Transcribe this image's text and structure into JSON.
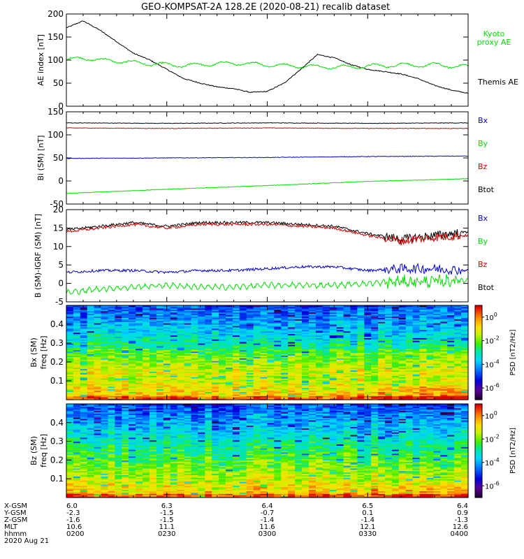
{
  "title": "GEO-KOMPSAT-2A 128.2E (2020-08-21) recalib dataset",
  "colors": {
    "black": "#000000",
    "green": "#00dd00",
    "blue": "#0000cc",
    "red": "#cc0000"
  },
  "chart_data": [
    {
      "type": "line",
      "ylabel": "AE index [nT]",
      "ylim": [
        0,
        200
      ],
      "yticks": [
        0,
        50,
        100,
        150,
        200
      ],
      "legend": [
        {
          "label": "Kyoto proxy AE",
          "color": "#00dd00"
        },
        {
          "label": "Themis AE",
          "color": "#000000"
        }
      ],
      "x_time_min": [
        0,
        5,
        10,
        15,
        20,
        25,
        30,
        35,
        40,
        45,
        50,
        55,
        60,
        65,
        70,
        75,
        80,
        85,
        90,
        95,
        100,
        105,
        110,
        115,
        120
      ],
      "series": [
        {
          "name": "Themis AE",
          "color": "#000000",
          "values": [
            170,
            185,
            165,
            140,
            115,
            100,
            80,
            60,
            50,
            42,
            38,
            30,
            32,
            50,
            80,
            112,
            105,
            90,
            80,
            75,
            70,
            60,
            45,
            35,
            28
          ]
        },
        {
          "name": "Kyoto proxy AE",
          "color": "#00dd00",
          "values": [
            100,
            105,
            100,
            98,
            95,
            92,
            90,
            88,
            90,
            92,
            93,
            92,
            90,
            88,
            87,
            86,
            85,
            85,
            87,
            88,
            90,
            88,
            90,
            87,
            86
          ]
        }
      ]
    },
    {
      "type": "line",
      "ylabel": "Bi (SM) [nT]",
      "ylim": [
        -50,
        150
      ],
      "yticks": [
        -50,
        0,
        50,
        100,
        150
      ],
      "legend": [
        {
          "label": "Bx",
          "color": "#0000cc"
        },
        {
          "label": "By",
          "color": "#00dd00"
        },
        {
          "label": "Bz",
          "color": "#cc0000"
        },
        {
          "label": "Btot",
          "color": "#000000"
        }
      ],
      "x_time_min": [
        0,
        30,
        60,
        90,
        120
      ],
      "series": [
        {
          "name": "Btot",
          "color": "#000000",
          "values": [
            126,
            125,
            126,
            125,
            126
          ]
        },
        {
          "name": "Bz",
          "color": "#cc0000",
          "values": [
            115,
            114,
            115,
            114,
            114
          ]
        },
        {
          "name": "Bx",
          "color": "#0000cc",
          "values": [
            49,
            50,
            51,
            53,
            54
          ]
        },
        {
          "name": "By",
          "color": "#00dd00",
          "values": [
            -27,
            -18,
            -10,
            -1,
            5
          ]
        }
      ]
    },
    {
      "type": "line",
      "ylabel": "B (SM)-IGRF (SM) [nT]",
      "ylim": [
        -5,
        20
      ],
      "yticks": [
        -5,
        0,
        5,
        10,
        15,
        20
      ],
      "legend": [
        {
          "label": "Bx",
          "color": "#0000cc"
        },
        {
          "label": "By",
          "color": "#00dd00"
        },
        {
          "label": "Bz",
          "color": "#cc0000"
        },
        {
          "label": "Btot",
          "color": "#000000"
        }
      ],
      "x_time_min": [
        0,
        10,
        20,
        30,
        40,
        50,
        60,
        70,
        80,
        90,
        100,
        110,
        120
      ],
      "series": [
        {
          "name": "Btot",
          "color": "#000000",
          "values": [
            14.5,
            15.5,
            16.5,
            15.5,
            16.5,
            16.5,
            16.5,
            16,
            15.5,
            13.5,
            12,
            13,
            14
          ]
        },
        {
          "name": "Bz",
          "color": "#cc0000",
          "values": [
            14,
            15,
            16,
            15,
            16,
            16,
            16,
            15.5,
            15,
            13,
            11.5,
            12.5,
            13
          ]
        },
        {
          "name": "Bx",
          "color": "#0000cc",
          "values": [
            3,
            3.5,
            3.5,
            3,
            3.5,
            3.5,
            4,
            4.5,
            4.5,
            3.5,
            4,
            4,
            3.5
          ]
        },
        {
          "name": "By",
          "color": "#00dd00",
          "values": [
            -2.5,
            -1.5,
            -1,
            -0.5,
            -1,
            -1,
            -0.5,
            -0.5,
            -0.5,
            0,
            0.5,
            0.5,
            1
          ]
        }
      ]
    },
    {
      "type": "heatmap",
      "ylabel": "Bx (SM) freq [Hz]",
      "ylim": [
        0,
        0.5
      ],
      "yticks": [
        0.1,
        0.2,
        0.3,
        0.4
      ],
      "colorbar_label": "PSD [nT2/Hz]",
      "colorbar_ticks": [
        "10^0",
        "10^-2",
        "10^-4",
        "10^-6"
      ],
      "colorbar_range_log10": [
        -7,
        1
      ]
    },
    {
      "type": "heatmap",
      "ylabel": "Bz (SM) freq [Hz]",
      "ylim": [
        0,
        0.5
      ],
      "yticks": [
        0.1,
        0.2,
        0.3,
        0.4
      ],
      "colorbar_label": "PSD [nT2/Hz]",
      "colorbar_ticks": [
        "10^0",
        "10^-2",
        "10^-4",
        "10^-6"
      ],
      "colorbar_range_log10": [
        -7,
        1
      ]
    }
  ],
  "xaxis": {
    "row_labels": [
      "X-GSM",
      "Y-GSM",
      "Z-GSM",
      "MLT",
      "hhmm"
    ],
    "columns": [
      [
        "6.0",
        "-2.3",
        "-1.6",
        "10.6",
        "0200"
      ],
      [
        "6.3",
        "-1.5",
        "-1.5",
        "11.1",
        "0230"
      ],
      [
        "6.4",
        "-0.7",
        "-1.4",
        "11.6",
        "0300"
      ],
      [
        "6.5",
        "0.1",
        "-1.4",
        "12.1",
        "0330"
      ],
      [
        "6.4",
        "0.9",
        "-1.3",
        "12.6",
        "0400"
      ]
    ],
    "date": "2020 Aug 21"
  }
}
